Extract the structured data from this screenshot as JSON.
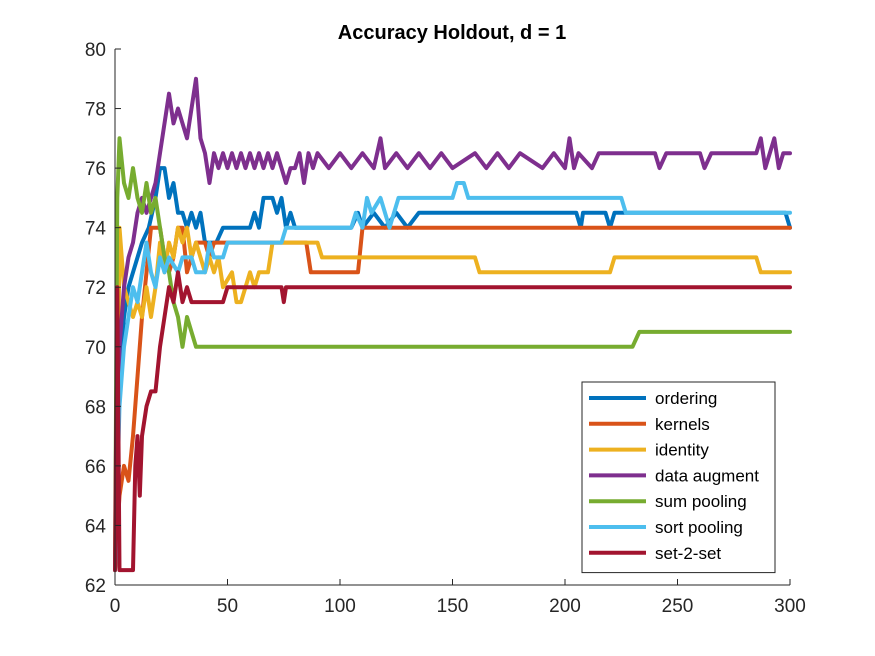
{
  "chart_data": {
    "type": "line",
    "title": "Accuracy Holdout, d = 1",
    "xlabel": "",
    "ylabel": "",
    "xlim": [
      0,
      300
    ],
    "ylim": [
      62,
      80
    ],
    "xticks": [
      0,
      50,
      100,
      150,
      200,
      250,
      300
    ],
    "yticks": [
      62,
      64,
      66,
      68,
      70,
      72,
      74,
      76,
      78,
      80
    ],
    "grid": false,
    "legend_position": "bottom-right",
    "series": [
      {
        "name": "ordering",
        "color": "#0072BD",
        "points": [
          [
            0,
            62.5
          ],
          [
            2,
            69
          ],
          [
            4,
            71
          ],
          [
            6,
            72
          ],
          [
            8,
            72.5
          ],
          [
            10,
            73
          ],
          [
            12,
            73.5
          ],
          [
            15,
            74
          ],
          [
            18,
            75
          ],
          [
            20,
            76
          ],
          [
            22,
            76
          ],
          [
            24,
            75
          ],
          [
            26,
            75.5
          ],
          [
            28,
            74.5
          ],
          [
            30,
            74.5
          ],
          [
            32,
            74
          ],
          [
            34,
            74.5
          ],
          [
            36,
            74
          ],
          [
            38,
            74.5
          ],
          [
            40,
            73.5
          ],
          [
            45,
            73.5
          ],
          [
            48,
            74
          ],
          [
            60,
            74
          ],
          [
            62,
            74.5
          ],
          [
            64,
            74
          ],
          [
            66,
            75
          ],
          [
            70,
            75
          ],
          [
            72,
            74.5
          ],
          [
            74,
            75
          ],
          [
            76,
            74
          ],
          [
            78,
            74.5
          ],
          [
            80,
            74
          ],
          [
            105,
            74
          ],
          [
            108,
            74.5
          ],
          [
            110,
            74
          ],
          [
            115,
            74.5
          ],
          [
            120,
            74
          ],
          [
            125,
            74.5
          ],
          [
            130,
            74
          ],
          [
            135,
            74.5
          ],
          [
            205,
            74.5
          ],
          [
            207,
            74
          ],
          [
            208,
            74.5
          ],
          [
            218,
            74.5
          ],
          [
            220,
            74
          ],
          [
            222,
            74.5
          ],
          [
            298,
            74.5
          ],
          [
            300,
            74
          ]
        ]
      },
      {
        "name": "kernels",
        "color": "#D95319",
        "points": [
          [
            0,
            62.5
          ],
          [
            2,
            65
          ],
          [
            4,
            66
          ],
          [
            6,
            65.5
          ],
          [
            8,
            67
          ],
          [
            10,
            69
          ],
          [
            12,
            71
          ],
          [
            14,
            72.5
          ],
          [
            16,
            74
          ],
          [
            20,
            74
          ],
          [
            22,
            73
          ],
          [
            24,
            72.5
          ],
          [
            26,
            73
          ],
          [
            28,
            74
          ],
          [
            30,
            74
          ],
          [
            32,
            72.5
          ],
          [
            34,
            73
          ],
          [
            36,
            73.5
          ],
          [
            40,
            73.5
          ],
          [
            42,
            73
          ],
          [
            44,
            73.5
          ],
          [
            85,
            73.5
          ],
          [
            87,
            72.5
          ],
          [
            108,
            72.5
          ],
          [
            110,
            74
          ],
          [
            300,
            74
          ]
        ]
      },
      {
        "name": "identity",
        "color": "#EDB120",
        "points": [
          [
            0,
            62.5
          ],
          [
            1,
            65
          ],
          [
            2,
            74
          ],
          [
            4,
            72
          ],
          [
            6,
            71.5
          ],
          [
            8,
            71
          ],
          [
            10,
            71.5
          ],
          [
            12,
            71
          ],
          [
            14,
            72
          ],
          [
            16,
            71
          ],
          [
            18,
            72
          ],
          [
            20,
            73.5
          ],
          [
            22,
            72.5
          ],
          [
            24,
            73.5
          ],
          [
            26,
            73
          ],
          [
            28,
            74
          ],
          [
            30,
            73.5
          ],
          [
            32,
            74
          ],
          [
            34,
            73
          ],
          [
            36,
            73.5
          ],
          [
            38,
            73
          ],
          [
            40,
            72.5
          ],
          [
            42,
            73
          ],
          [
            44,
            72.5
          ],
          [
            46,
            73
          ],
          [
            48,
            72
          ],
          [
            52,
            72.5
          ],
          [
            54,
            71.5
          ],
          [
            56,
            71.5
          ],
          [
            58,
            72
          ],
          [
            60,
            72.5
          ],
          [
            62,
            72
          ],
          [
            64,
            72.5
          ],
          [
            68,
            72.5
          ],
          [
            70,
            73.5
          ],
          [
            90,
            73.5
          ],
          [
            92,
            73
          ],
          [
            160,
            73
          ],
          [
            162,
            72.5
          ],
          [
            220,
            72.5
          ],
          [
            222,
            73
          ],
          [
            285,
            73
          ],
          [
            287,
            72.5
          ],
          [
            300,
            72.5
          ]
        ]
      },
      {
        "name": "data augment",
        "color": "#7E2F8E",
        "points": [
          [
            0,
            62.5
          ],
          [
            2,
            70
          ],
          [
            4,
            72
          ],
          [
            6,
            73
          ],
          [
            8,
            73.5
          ],
          [
            10,
            74.5
          ],
          [
            12,
            75
          ],
          [
            14,
            74.5
          ],
          [
            16,
            75
          ],
          [
            18,
            75.5
          ],
          [
            20,
            76.5
          ],
          [
            22,
            77.5
          ],
          [
            24,
            78.5
          ],
          [
            26,
            77.5
          ],
          [
            28,
            78
          ],
          [
            30,
            77.5
          ],
          [
            32,
            77
          ],
          [
            34,
            78
          ],
          [
            36,
            79
          ],
          [
            38,
            77
          ],
          [
            40,
            76.5
          ],
          [
            42,
            75.5
          ],
          [
            44,
            76.5
          ],
          [
            46,
            76
          ],
          [
            48,
            76.5
          ],
          [
            50,
            76
          ],
          [
            52,
            76.5
          ],
          [
            54,
            76
          ],
          [
            56,
            76.5
          ],
          [
            58,
            76
          ],
          [
            60,
            76.5
          ],
          [
            62,
            76
          ],
          [
            64,
            76.5
          ],
          [
            66,
            76
          ],
          [
            68,
            76.5
          ],
          [
            70,
            76
          ],
          [
            72,
            76.5
          ],
          [
            74,
            76
          ],
          [
            76,
            75.5
          ],
          [
            78,
            76
          ],
          [
            80,
            76
          ],
          [
            82,
            76.5
          ],
          [
            84,
            75.5
          ],
          [
            86,
            76.5
          ],
          [
            88,
            76
          ],
          [
            90,
            76.5
          ],
          [
            95,
            76
          ],
          [
            100,
            76.5
          ],
          [
            105,
            76
          ],
          [
            110,
            76.5
          ],
          [
            115,
            76
          ],
          [
            118,
            77
          ],
          [
            120,
            76
          ],
          [
            125,
            76.5
          ],
          [
            130,
            76
          ],
          [
            135,
            76.5
          ],
          [
            140,
            76
          ],
          [
            145,
            76.5
          ],
          [
            150,
            76
          ],
          [
            160,
            76.5
          ],
          [
            165,
            76
          ],
          [
            170,
            76.5
          ],
          [
            175,
            76
          ],
          [
            180,
            76.5
          ],
          [
            190,
            76
          ],
          [
            195,
            76.5
          ],
          [
            200,
            76
          ],
          [
            202,
            77
          ],
          [
            204,
            76
          ],
          [
            206,
            76.5
          ],
          [
            212,
            76
          ],
          [
            215,
            76.5
          ],
          [
            240,
            76.5
          ],
          [
            242,
            76
          ],
          [
            245,
            76.5
          ],
          [
            260,
            76.5
          ],
          [
            262,
            76
          ],
          [
            265,
            76.5
          ],
          [
            285,
            76.5
          ],
          [
            287,
            77
          ],
          [
            289,
            76
          ],
          [
            291,
            76.5
          ],
          [
            293,
            77
          ],
          [
            295,
            76
          ],
          [
            297,
            76.5
          ],
          [
            300,
            76.5
          ]
        ]
      },
      {
        "name": "sum pooling",
        "color": "#77AC30",
        "points": [
          [
            0,
            62.5
          ],
          [
            1,
            75
          ],
          [
            2,
            77
          ],
          [
            4,
            75.5
          ],
          [
            6,
            75
          ],
          [
            8,
            76
          ],
          [
            10,
            75
          ],
          [
            12,
            74.5
          ],
          [
            14,
            75.5
          ],
          [
            16,
            74.5
          ],
          [
            18,
            75
          ],
          [
            20,
            74
          ],
          [
            22,
            73
          ],
          [
            24,
            72.5
          ],
          [
            26,
            71.5
          ],
          [
            28,
            71
          ],
          [
            30,
            70
          ],
          [
            32,
            71
          ],
          [
            34,
            70.5
          ],
          [
            36,
            70
          ],
          [
            230,
            70
          ],
          [
            233,
            70.5
          ],
          [
            300,
            70.5
          ]
        ]
      },
      {
        "name": "sort pooling",
        "color": "#4DBEEE",
        "points": [
          [
            0,
            62.5
          ],
          [
            2,
            68
          ],
          [
            4,
            70
          ],
          [
            6,
            71
          ],
          [
            8,
            72
          ],
          [
            10,
            71.5
          ],
          [
            12,
            72.5
          ],
          [
            14,
            73.5
          ],
          [
            16,
            72.5
          ],
          [
            18,
            72
          ],
          [
            20,
            73
          ],
          [
            22,
            72.5
          ],
          [
            24,
            73
          ],
          [
            28,
            72.5
          ],
          [
            30,
            73
          ],
          [
            34,
            73
          ],
          [
            36,
            72.5
          ],
          [
            40,
            72.5
          ],
          [
            42,
            73.5
          ],
          [
            44,
            73
          ],
          [
            48,
            73
          ],
          [
            50,
            73.5
          ],
          [
            74,
            73.5
          ],
          [
            76,
            74
          ],
          [
            105,
            74
          ],
          [
            107,
            74.5
          ],
          [
            110,
            74
          ],
          [
            112,
            75
          ],
          [
            114,
            74.5
          ],
          [
            118,
            75
          ],
          [
            122,
            74
          ],
          [
            126,
            75
          ],
          [
            130,
            75
          ],
          [
            135,
            75
          ],
          [
            150,
            75
          ],
          [
            152,
            75.5
          ],
          [
            155,
            75.5
          ],
          [
            157,
            75
          ],
          [
            225,
            75
          ],
          [
            227,
            74.5
          ],
          [
            300,
            74.5
          ]
        ]
      },
      {
        "name": "set-2-set",
        "color": "#A2142F",
        "points": [
          [
            0,
            62.5
          ],
          [
            1,
            72
          ],
          [
            2,
            62.5
          ],
          [
            8,
            62.5
          ],
          [
            9,
            66
          ],
          [
            10,
            67
          ],
          [
            11,
            65
          ],
          [
            12,
            67
          ],
          [
            14,
            68
          ],
          [
            16,
            68.5
          ],
          [
            18,
            68.5
          ],
          [
            20,
            70
          ],
          [
            22,
            71
          ],
          [
            24,
            72
          ],
          [
            26,
            71.5
          ],
          [
            28,
            72.5
          ],
          [
            30,
            71.5
          ],
          [
            32,
            72
          ],
          [
            34,
            71.5
          ],
          [
            48,
            71.5
          ],
          [
            50,
            72
          ],
          [
            74,
            72
          ],
          [
            75,
            71.5
          ],
          [
            76,
            72
          ],
          [
            300,
            72
          ]
        ]
      }
    ]
  }
}
